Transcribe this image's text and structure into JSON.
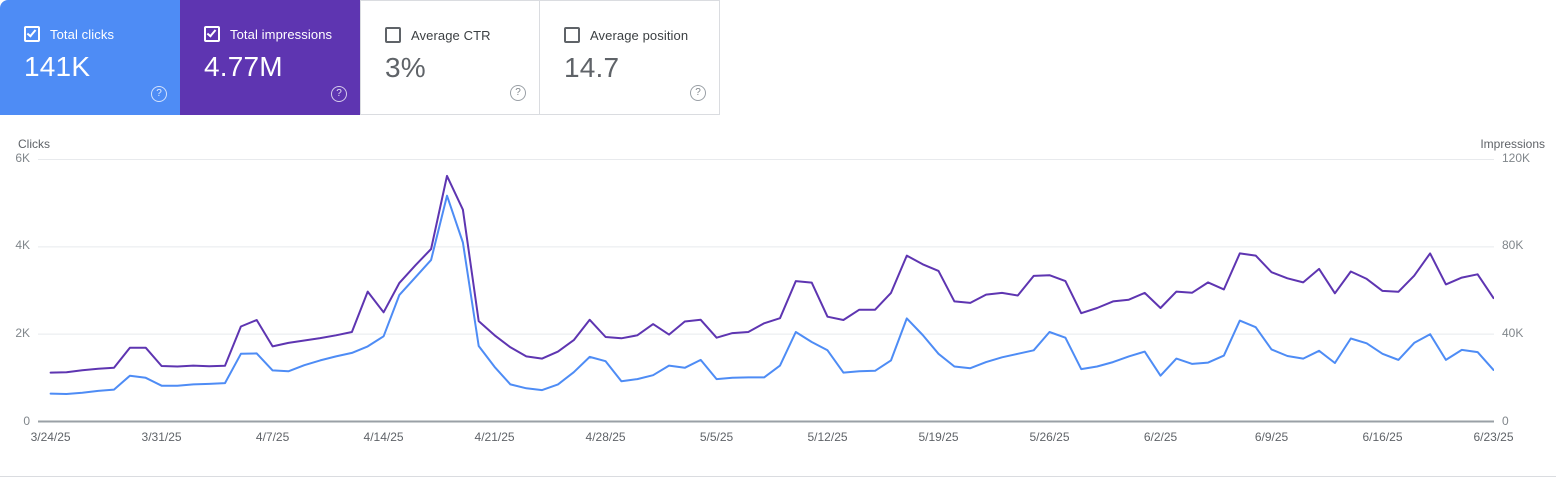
{
  "cards": [
    {
      "label": "Total clicks",
      "value": "141K",
      "checked": true,
      "bg": "#4e8cf5"
    },
    {
      "label": "Total impressions",
      "value": "4.77M",
      "checked": true,
      "bg": "#5e35b1"
    },
    {
      "label": "Average CTR",
      "value": "3%",
      "checked": false,
      "bg": "#ffffff"
    },
    {
      "label": "Average position",
      "value": "14.7",
      "checked": false,
      "bg": "#ffffff"
    }
  ],
  "help_glyph": "?",
  "chart_data": {
    "type": "line",
    "grid": true,
    "x_labels": [
      "3/24/25",
      "3/31/25",
      "4/7/25",
      "4/14/25",
      "4/21/25",
      "4/28/25",
      "5/5/25",
      "5/12/25",
      "5/19/25",
      "5/26/25",
      "6/2/25",
      "6/9/25",
      "6/16/25",
      "6/23/25"
    ],
    "x_label_step_days": 7,
    "left_axis": {
      "title": "Clicks",
      "ticks": [
        "6K",
        "4K",
        "2K",
        "0"
      ],
      "max": 6000
    },
    "right_axis": {
      "title": "Impressions",
      "ticks": [
        "120K",
        "80K",
        "40K",
        "0"
      ],
      "max": 120000
    },
    "grid_color": "#e8eaed",
    "zero_line_color": "#9aa0a6",
    "series": [
      {
        "name": "Total clicks",
        "axis": "left",
        "color": "#4e8cf5",
        "values": [
          640,
          630,
          660,
          700,
          730,
          1050,
          1000,
          820,
          820,
          850,
          860,
          880,
          1550,
          1560,
          1170,
          1150,
          1290,
          1400,
          1490,
          1570,
          1720,
          1950,
          2900,
          3300,
          3700,
          5170,
          4100,
          1730,
          1250,
          850,
          760,
          720,
          850,
          1130,
          1480,
          1380,
          920,
          970,
          1060,
          1280,
          1230,
          1410,
          970,
          1000,
          1010,
          1010,
          1280,
          2050,
          1820,
          1630,
          1120,
          1150,
          1160,
          1400,
          2360,
          1980,
          1550,
          1260,
          1220,
          1360,
          1470,
          1550,
          1630,
          2050,
          1920,
          1200,
          1260,
          1360,
          1490,
          1600,
          1050,
          1440,
          1320,
          1350,
          1510,
          2310,
          2160,
          1650,
          1500,
          1440,
          1620,
          1340,
          1900,
          1790,
          1550,
          1410,
          1800,
          2000,
          1410,
          1640,
          1590,
          1180
        ]
      },
      {
        "name": "Total impressions",
        "axis": "right",
        "color": "#5e35b1",
        "values": [
          22400,
          22600,
          23500,
          24200,
          24600,
          33800,
          33800,
          25400,
          25200,
          25600,
          25300,
          25500,
          43500,
          46500,
          34400,
          36000,
          37100,
          38200,
          39500,
          41000,
          59500,
          50000,
          63500,
          71500,
          79000,
          112500,
          97000,
          46000,
          39500,
          34000,
          29800,
          28800,
          32000,
          37300,
          46600,
          38700,
          38100,
          39500,
          44600,
          39800,
          45800,
          46600,
          38400,
          40500,
          41000,
          45000,
          47300,
          64300,
          63600,
          48000,
          46500,
          51200,
          51200,
          58900,
          76000,
          72000,
          69000,
          55000,
          54300,
          58100,
          58900,
          57700,
          66700,
          67000,
          64300,
          49600,
          52000,
          55000,
          55800,
          58900,
          52000,
          59500,
          59000,
          63700,
          60500,
          77000,
          76000,
          68400,
          65600,
          63700,
          69900,
          58700,
          68700,
          65300,
          59800,
          59400,
          66800,
          77000,
          62800,
          65900,
          67400,
          56500
        ]
      }
    ]
  }
}
